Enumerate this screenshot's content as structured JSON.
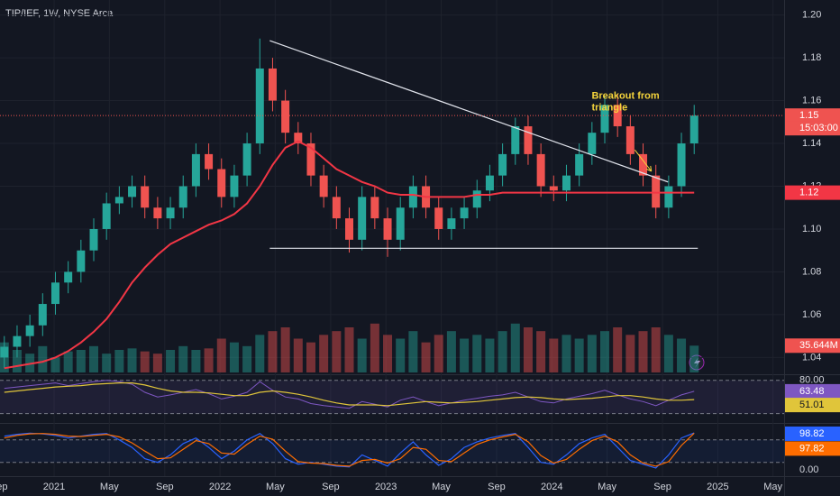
{
  "chart_data": {
    "type": "candlestick",
    "title": "TIP/IEF, 1W, NYSE Arca",
    "up_color": "#26a69a",
    "down_color": "#ef5350",
    "x": [
      2020.7,
      2020.777,
      2020.854,
      2020.931,
      2021.008,
      2021.085,
      2021.162,
      2021.239,
      2021.316,
      2021.393,
      2021.47,
      2021.547,
      2021.624,
      2021.701,
      2021.778,
      2021.855,
      2021.932,
      2022.009,
      2022.086,
      2022.163,
      2022.24,
      2022.317,
      2022.394,
      2022.471,
      2022.548,
      2022.625,
      2022.702,
      2022.779,
      2022.856,
      2022.933,
      2023.01,
      2023.087,
      2023.164,
      2023.241,
      2023.318,
      2023.395,
      2023.472,
      2023.549,
      2023.626,
      2023.703,
      2023.78,
      2023.857,
      2023.934,
      2024.011,
      2024.088,
      2024.165,
      2024.242,
      2024.319,
      2024.396,
      2024.473,
      2024.55,
      2024.627,
      2024.704,
      2024.781,
      2024.858
    ],
    "open": [
      1.04,
      1.045,
      1.05,
      1.055,
      1.065,
      1.075,
      1.08,
      1.09,
      1.1,
      1.112,
      1.115,
      1.12,
      1.11,
      1.105,
      1.11,
      1.12,
      1.135,
      1.128,
      1.115,
      1.125,
      1.14,
      1.175,
      1.16,
      1.145,
      1.14,
      1.125,
      1.115,
      1.105,
      1.095,
      1.115,
      1.105,
      1.095,
      1.11,
      1.12,
      1.11,
      1.1,
      1.105,
      1.11,
      1.118,
      1.125,
      1.135,
      1.148,
      1.135,
      1.12,
      1.118,
      1.125,
      1.135,
      1.145,
      1.158,
      1.148,
      1.135,
      1.125,
      1.11,
      1.12,
      1.14
    ],
    "high": [
      1.05,
      1.055,
      1.06,
      1.07,
      1.08,
      1.085,
      1.095,
      1.105,
      1.117,
      1.12,
      1.125,
      1.125,
      1.115,
      1.115,
      1.125,
      1.14,
      1.14,
      1.133,
      1.13,
      1.145,
      1.189,
      1.18,
      1.165,
      1.15,
      1.145,
      1.13,
      1.12,
      1.11,
      1.12,
      1.12,
      1.11,
      1.115,
      1.125,
      1.125,
      1.115,
      1.11,
      1.115,
      1.123,
      1.13,
      1.14,
      1.152,
      1.153,
      1.14,
      1.125,
      1.13,
      1.14,
      1.15,
      1.162,
      1.163,
      1.153,
      1.14,
      1.13,
      1.125,
      1.145,
      1.158
    ],
    "low": [
      1.035,
      1.04,
      1.045,
      1.05,
      1.06,
      1.07,
      1.075,
      1.085,
      1.095,
      1.107,
      1.11,
      1.105,
      1.1,
      1.1,
      1.105,
      1.115,
      1.123,
      1.11,
      1.11,
      1.12,
      1.135,
      1.155,
      1.14,
      1.135,
      1.12,
      1.11,
      1.1,
      1.089,
      1.09,
      1.1,
      1.087,
      1.09,
      1.105,
      1.105,
      1.095,
      1.095,
      1.1,
      1.105,
      1.113,
      1.12,
      1.13,
      1.13,
      1.115,
      1.113,
      1.113,
      1.12,
      1.13,
      1.14,
      1.143,
      1.13,
      1.12,
      1.105,
      1.105,
      1.115,
      1.135
    ],
    "close": [
      1.045,
      1.05,
      1.055,
      1.065,
      1.075,
      1.08,
      1.09,
      1.1,
      1.112,
      1.115,
      1.12,
      1.11,
      1.105,
      1.11,
      1.12,
      1.135,
      1.128,
      1.115,
      1.125,
      1.14,
      1.175,
      1.16,
      1.145,
      1.14,
      1.125,
      1.115,
      1.105,
      1.095,
      1.115,
      1.105,
      1.095,
      1.11,
      1.12,
      1.11,
      1.1,
      1.105,
      1.11,
      1.118,
      1.125,
      1.135,
      1.148,
      1.135,
      1.12,
      1.118,
      1.125,
      1.135,
      1.145,
      1.158,
      1.148,
      1.135,
      1.125,
      1.11,
      1.12,
      1.14,
      1.153
    ],
    "price_label": "1.15",
    "countdown": "15:03:00",
    "xlim": [
      2020.674,
      2025.4
    ],
    "xticks": [
      {
        "value": 2020.667,
        "label": "Sep"
      },
      {
        "value": 2021,
        "label": "2021"
      },
      {
        "value": 2021.333,
        "label": "May"
      },
      {
        "value": 2021.667,
        "label": "Sep"
      },
      {
        "value": 2022,
        "label": "2022"
      },
      {
        "value": 2022.333,
        "label": "May"
      },
      {
        "value": 2022.667,
        "label": "Sep"
      },
      {
        "value": 2023,
        "label": "2023"
      },
      {
        "value": 2023.333,
        "label": "May"
      },
      {
        "value": 2023.667,
        "label": "Sep"
      },
      {
        "value": 2024,
        "label": "2024"
      },
      {
        "value": 2024.333,
        "label": "May"
      },
      {
        "value": 2024.667,
        "label": "Sep"
      },
      {
        "value": 2025,
        "label": "2025"
      },
      {
        "value": 2025.333,
        "label": "May"
      }
    ],
    "ylim": [
      1.033,
      1.207
    ],
    "yticks": [
      1.04,
      1.06,
      1.08,
      {
        "value": 1.1,
        "label": "1.10"
      },
      1.12,
      1.14,
      1.16,
      1.18,
      {
        "value": 1.2,
        "label": "1.20"
      }
    ],
    "ma": {
      "color": "#f23645",
      "label": "1.12",
      "values": [
        1.035,
        1.036,
        1.037,
        1.038,
        1.04,
        1.043,
        1.047,
        1.052,
        1.058,
        1.066,
        1.075,
        1.082,
        1.088,
        1.093,
        1.096,
        1.099,
        1.102,
        1.104,
        1.107,
        1.112,
        1.12,
        1.13,
        1.138,
        1.141,
        1.138,
        1.133,
        1.128,
        1.125,
        1.122,
        1.12,
        1.117,
        1.116,
        1.116,
        1.115,
        1.115,
        1.115,
        1.115,
        1.116,
        1.116,
        1.117,
        1.117,
        1.117,
        1.117,
        1.117,
        1.117,
        1.117,
        1.117,
        1.117,
        1.117,
        1.117,
        1.117,
        1.117,
        1.117,
        1.117,
        1.117
      ]
    },
    "trendlines": [
      {
        "x": [
          2022.3,
          2024.7
        ],
        "y": [
          1.188,
          1.122
        ]
      },
      {
        "x": [
          2022.3,
          2024.88
        ],
        "y": [
          1.091,
          1.091
        ]
      }
    ],
    "annotation": {
      "lines": [
        "Breakout from",
        "triangle"
      ],
      "x": 2024.24,
      "y": 1.162,
      "color": "#f5d43b",
      "arrow": {
        "x": [
          2024.5,
          2024.6
        ],
        "y": [
          1.137,
          1.127
        ]
      }
    },
    "volume": {
      "ylim": [
        0,
        120
      ],
      "label": "35.644M",
      "values": [
        40,
        30,
        25,
        35,
        20,
        28,
        30,
        35,
        25,
        30,
        32,
        28,
        25,
        30,
        35,
        30,
        32,
        45,
        40,
        35,
        50,
        55,
        60,
        45,
        40,
        50,
        55,
        60,
        45,
        65,
        50,
        45,
        55,
        40,
        50,
        55,
        45,
        50,
        45,
        55,
        65,
        60,
        55,
        45,
        50,
        45,
        50,
        55,
        60,
        50,
        55,
        60,
        50,
        45,
        35.644
      ]
    },
    "rsi": {
      "ylim": [
        20,
        85
      ],
      "ticks": [
        {
          "value": 80,
          "label": "80.00"
        }
      ],
      "levels": [
        80,
        30
      ],
      "color": "#7e57c2",
      "ma_color": "#e0c53a",
      "values": [
        68,
        70,
        72,
        74,
        76,
        72,
        75,
        78,
        80,
        78,
        74,
        62,
        55,
        58,
        62,
        66,
        60,
        52,
        56,
        62,
        78,
        65,
        55,
        52,
        45,
        42,
        40,
        38,
        48,
        44,
        40,
        50,
        55,
        48,
        42,
        46,
        50,
        53,
        56,
        58,
        62,
        55,
        48,
        46,
        52,
        56,
        60,
        65,
        58,
        52,
        48,
        42,
        50,
        58,
        63.48
      ],
      "ma": [
        62,
        64,
        66,
        68,
        70,
        71,
        72,
        74,
        75,
        76,
        76,
        73,
        68,
        64,
        62,
        62,
        61,
        59,
        57,
        57,
        62,
        64,
        62,
        59,
        55,
        50,
        46,
        43,
        43,
        43,
        42,
        44,
        46,
        48,
        47,
        46,
        47,
        48,
        50,
        52,
        54,
        55,
        54,
        52,
        51,
        52,
        53,
        55,
        57,
        57,
        55,
        52,
        50,
        50,
        51.01
      ]
    },
    "stoch": {
      "ylim": [
        -12,
        118
      ],
      "ticks": [
        {
          "value": 0,
          "label": "0.00"
        }
      ],
      "levels": [
        80,
        20
      ],
      "k_color": "#2962ff",
      "d_color": "#ff6d00",
      "k": [
        90,
        95,
        98,
        96,
        92,
        85,
        90,
        95,
        97,
        80,
        60,
        30,
        20,
        40,
        70,
        85,
        60,
        30,
        50,
        80,
        97,
        70,
        30,
        15,
        20,
        15,
        10,
        8,
        40,
        25,
        10,
        45,
        75,
        40,
        12,
        30,
        60,
        75,
        85,
        92,
        97,
        60,
        20,
        15,
        40,
        70,
        85,
        95,
        60,
        25,
        15,
        5,
        40,
        85,
        98.82
      ],
      "d": [
        85,
        92,
        96,
        97,
        95,
        90,
        89,
        92,
        95,
        88,
        72,
        50,
        30,
        32,
        55,
        78,
        70,
        45,
        42,
        68,
        90,
        82,
        50,
        22,
        18,
        17,
        12,
        10,
        25,
        28,
        18,
        30,
        60,
        55,
        25,
        22,
        45,
        68,
        80,
        88,
        95,
        75,
        38,
        18,
        28,
        55,
        78,
        90,
        75,
        40,
        18,
        10,
        22,
        65,
        97.82
      ]
    }
  }
}
